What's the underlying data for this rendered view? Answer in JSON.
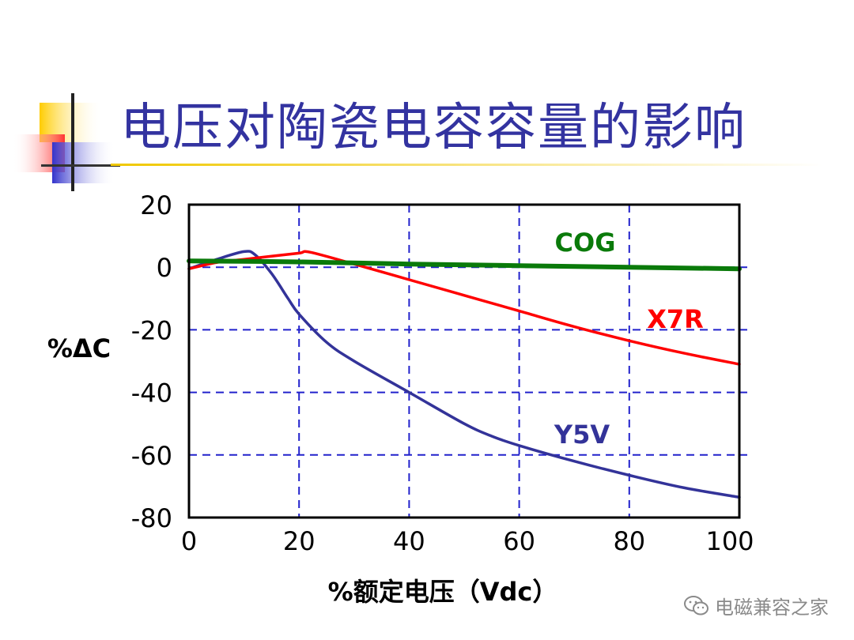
{
  "slide": {
    "title": "电压对陶瓷电容容量的影响",
    "watermark": "电磁兼容之家",
    "watermark_icon": "wechat-icon"
  },
  "colors": {
    "title": "#3333a0",
    "grid": "#2222cc",
    "COG": "#0a7a0a",
    "X7R": "#ff0000",
    "Y5V": "#333399"
  },
  "chart_data": {
    "type": "line",
    "xlabel": "%额定电压（Vdc）",
    "ylabel": "%ΔC",
    "xlim": [
      0,
      100
    ],
    "ylim": [
      -80,
      20
    ],
    "x_ticks": [
      0,
      20,
      40,
      60,
      80,
      100
    ],
    "y_ticks": [
      20,
      0,
      -20,
      -40,
      -60,
      -80
    ],
    "grid": true,
    "series": [
      {
        "name": "COG",
        "x": [
          0,
          20,
          40,
          60,
          80,
          100
        ],
        "y": [
          2.0,
          1.7,
          1.0,
          0.5,
          0.0,
          -0.5
        ]
      },
      {
        "name": "X7R",
        "x": [
          0,
          5,
          10,
          15,
          20,
          22,
          30,
          40,
          50,
          60,
          70,
          80,
          90,
          100
        ],
        "y": [
          -0.5,
          1.5,
          2.5,
          3.5,
          4.5,
          4.8,
          1.0,
          -4.0,
          -9.0,
          -14.0,
          -19.0,
          -23.5,
          -27.5,
          -31.0
        ]
      },
      {
        "name": "Y5V",
        "x": [
          0,
          5,
          10,
          12,
          15,
          18,
          20,
          25,
          30,
          40,
          50,
          55,
          60,
          70,
          80,
          90,
          100
        ],
        "y": [
          -0.5,
          2.5,
          5.0,
          4.0,
          -2.0,
          -10.0,
          -15.0,
          -24.0,
          -30.0,
          -40.0,
          -50.0,
          -54.0,
          -57.0,
          -62.0,
          -66.5,
          -70.5,
          -73.5
        ]
      }
    ]
  }
}
